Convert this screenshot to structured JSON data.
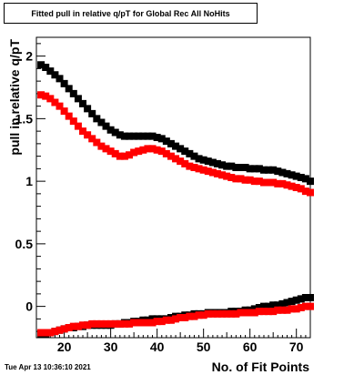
{
  "title": "Fitted pull in relative q/pT for Global Rec All NoHits",
  "timestamp": "Tue Apr 13 10:36:10 2021",
  "colors": {
    "series_black": "#000000",
    "series_red": "#ff0000",
    "frame": "#000000",
    "background": "#ffffff"
  },
  "chart_data": {
    "type": "scatter",
    "title": "Fitted pull in relative q/pT for Global Rec All NoHits",
    "xlabel": "No. of Fit Points",
    "ylabel": "pull in relative q/pT",
    "xlim": [
      14,
      73
    ],
    "ylim": [
      -0.25,
      2.15
    ],
    "x_ticks": [
      "20",
      "30",
      "40",
      "50",
      "60",
      "70"
    ],
    "y_ticks": [
      "0",
      "0.5",
      "1",
      "1.5",
      "2"
    ],
    "grid": false,
    "legend": "none",
    "series": [
      {
        "color": "#000000",
        "x": [
          15,
          16,
          17,
          18,
          19,
          20,
          21,
          22,
          23,
          24,
          25,
          26,
          27,
          28,
          29,
          30,
          31,
          32,
          33,
          34,
          35,
          36,
          37,
          38,
          39,
          40,
          41,
          42,
          43,
          44,
          45,
          46,
          47,
          48,
          49,
          50,
          51,
          52,
          53,
          54,
          55,
          56,
          57,
          58,
          59,
          60,
          61,
          62,
          63,
          64,
          65,
          66,
          67,
          68,
          69,
          70,
          71,
          72,
          73
        ],
        "y": [
          1.93,
          1.91,
          1.88,
          1.85,
          1.82,
          1.78,
          1.74,
          1.7,
          1.66,
          1.62,
          1.58,
          1.54,
          1.5,
          1.47,
          1.44,
          1.41,
          1.39,
          1.37,
          1.36,
          1.36,
          1.36,
          1.36,
          1.36,
          1.36,
          1.36,
          1.35,
          1.34,
          1.32,
          1.3,
          1.28,
          1.26,
          1.24,
          1.22,
          1.2,
          1.18,
          1.17,
          1.16,
          1.15,
          1.14,
          1.13,
          1.12,
          1.12,
          1.11,
          1.11,
          1.11,
          1.1,
          1.1,
          1.1,
          1.09,
          1.09,
          1.09,
          1.08,
          1.07,
          1.06,
          1.05,
          1.04,
          1.03,
          1.02,
          1.0
        ]
      },
      {
        "color": "#ff0000",
        "x": [
          15,
          16,
          17,
          18,
          19,
          20,
          21,
          22,
          23,
          24,
          25,
          26,
          27,
          28,
          29,
          30,
          31,
          32,
          33,
          34,
          35,
          36,
          37,
          38,
          39,
          40,
          41,
          42,
          43,
          44,
          45,
          46,
          47,
          48,
          49,
          50,
          51,
          52,
          53,
          54,
          55,
          56,
          57,
          58,
          59,
          60,
          61,
          62,
          63,
          64,
          65,
          66,
          67,
          68,
          69,
          70,
          71,
          72,
          73
        ],
        "y": [
          1.69,
          1.68,
          1.66,
          1.63,
          1.6,
          1.56,
          1.52,
          1.48,
          1.44,
          1.4,
          1.37,
          1.34,
          1.31,
          1.28,
          1.26,
          1.24,
          1.22,
          1.2,
          1.2,
          1.21,
          1.23,
          1.24,
          1.25,
          1.26,
          1.26,
          1.25,
          1.24,
          1.22,
          1.2,
          1.18,
          1.16,
          1.14,
          1.12,
          1.11,
          1.1,
          1.09,
          1.08,
          1.07,
          1.06,
          1.05,
          1.04,
          1.03,
          1.02,
          1.02,
          1.01,
          1.01,
          1.0,
          1.0,
          0.99,
          0.99,
          0.99,
          0.98,
          0.98,
          0.97,
          0.96,
          0.95,
          0.94,
          0.92,
          0.91
        ]
      },
      {
        "color": "#000000",
        "x": [
          15,
          16,
          17,
          18,
          19,
          20,
          21,
          22,
          23,
          24,
          25,
          26,
          27,
          28,
          29,
          30,
          31,
          32,
          33,
          34,
          35,
          36,
          37,
          38,
          39,
          40,
          41,
          42,
          43,
          44,
          45,
          46,
          47,
          48,
          49,
          50,
          51,
          52,
          53,
          54,
          55,
          56,
          57,
          58,
          59,
          60,
          61,
          62,
          63,
          64,
          65,
          66,
          67,
          68,
          69,
          70,
          71,
          72,
          73
        ],
        "y": [
          -0.22,
          -0.22,
          -0.21,
          -0.2,
          -0.19,
          -0.18,
          -0.17,
          -0.17,
          -0.16,
          -0.16,
          -0.15,
          -0.15,
          -0.15,
          -0.15,
          -0.15,
          -0.15,
          -0.14,
          -0.14,
          -0.13,
          -0.13,
          -0.12,
          -0.12,
          -0.11,
          -0.11,
          -0.1,
          -0.1,
          -0.1,
          -0.1,
          -0.09,
          -0.08,
          -0.08,
          -0.07,
          -0.07,
          -0.06,
          -0.06,
          -0.06,
          -0.05,
          -0.05,
          -0.05,
          -0.05,
          -0.05,
          -0.04,
          -0.04,
          -0.04,
          -0.03,
          -0.03,
          -0.02,
          -0.01,
          0.0,
          0.0,
          0.01,
          0.01,
          0.02,
          0.03,
          0.04,
          0.05,
          0.06,
          0.07,
          0.07
        ]
      },
      {
        "color": "#ff0000",
        "x": [
          15,
          16,
          17,
          18,
          19,
          20,
          21,
          22,
          23,
          24,
          25,
          26,
          27,
          28,
          29,
          30,
          31,
          32,
          33,
          34,
          35,
          36,
          37,
          38,
          39,
          40,
          41,
          42,
          43,
          44,
          45,
          46,
          47,
          48,
          49,
          50,
          51,
          52,
          53,
          54,
          55,
          56,
          57,
          58,
          59,
          60,
          61,
          62,
          63,
          64,
          65,
          66,
          67,
          68,
          69,
          70,
          71,
          72,
          73
        ],
        "y": [
          -0.21,
          -0.21,
          -0.21,
          -0.2,
          -0.19,
          -0.18,
          -0.17,
          -0.16,
          -0.16,
          -0.15,
          -0.15,
          -0.14,
          -0.14,
          -0.14,
          -0.14,
          -0.14,
          -0.14,
          -0.14,
          -0.14,
          -0.14,
          -0.13,
          -0.13,
          -0.13,
          -0.13,
          -0.13,
          -0.12,
          -0.12,
          -0.11,
          -0.11,
          -0.1,
          -0.09,
          -0.09,
          -0.08,
          -0.08,
          -0.07,
          -0.07,
          -0.06,
          -0.06,
          -0.06,
          -0.06,
          -0.06,
          -0.06,
          -0.06,
          -0.05,
          -0.05,
          -0.05,
          -0.05,
          -0.04,
          -0.04,
          -0.04,
          -0.04,
          -0.03,
          -0.03,
          -0.03,
          -0.02,
          -0.02,
          -0.01,
          0.0,
          0.0
        ]
      }
    ]
  }
}
